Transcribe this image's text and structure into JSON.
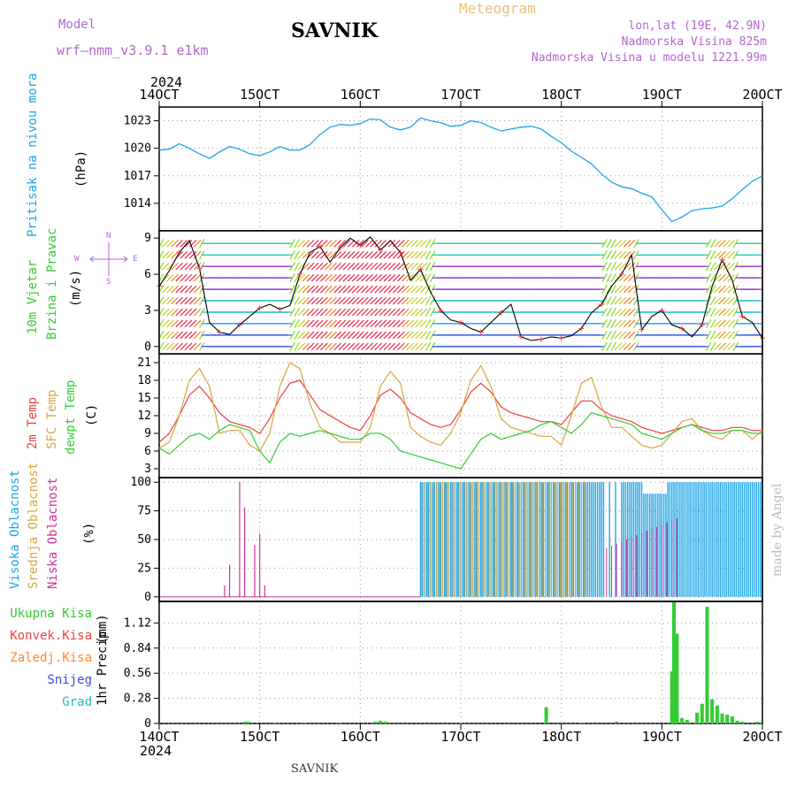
{
  "header": {
    "model_label": "Model",
    "model_name": "wrf–nmm_v3.9.1  e1km",
    "station": "SAVNIK",
    "product": "Meteogram",
    "lonlat": "lon,lat (19E, 42.9N)",
    "elevation": "Nadmorska Visina 825m",
    "model_elevation": "Nadmorska Visina u modelu 1221.99m",
    "year_top": "2024",
    "year_bottom": "2024",
    "footer": "SAVNIK",
    "credit": "made by Angel"
  },
  "colors": {
    "pressure": "#1ea5e8",
    "temp2m": "#ee4040",
    "sfc": "#d9a640",
    "dewpt": "#33cc33",
    "high_cloud": "#1ea5e8",
    "mid_cloud": "#d9a640",
    "low_cloud": "#cc3399",
    "precip": "#33cc33",
    "conv": "#ee4040"
  },
  "labels": {
    "pressure": [
      "Pritisak na nivou mora",
      "(hPa)"
    ],
    "wind": [
      "10m Vjetar",
      "Brzina i Pravac",
      "(m/s)"
    ],
    "temp": [
      "2m Temp",
      "SFC Temp",
      "dewpt Temp",
      "(C)"
    ],
    "cloud": [
      "Visoka Oblacnost",
      "Srednja Oblacnost",
      "Niska Oblacnost",
      "(%)"
    ],
    "precip": [
      "Ukupna Kisa",
      "Konvek.Kisa",
      "Zaledj.Kisa",
      "Snijeg",
      "Grad"
    ],
    "precip_axis": [
      "1hr Precip",
      "(mm)"
    ],
    "compass": {
      "n": "N",
      "s": "S",
      "w": "W",
      "e": "E"
    }
  },
  "chart_data": [
    {
      "type": "line",
      "name": "pressure",
      "x_ticks": [
        "14OCT",
        "15OCT",
        "16OCT",
        "17OCT",
        "18OCT",
        "19OCT",
        "20OCT"
      ],
      "xlim_days": [
        14,
        20
      ],
      "ylim": [
        1011,
        1024.5
      ],
      "y_ticks": [
        1014,
        1017,
        1020,
        1023
      ],
      "x": [
        14.0,
        14.1,
        14.2,
        14.3,
        14.4,
        14.5,
        14.6,
        14.7,
        14.8,
        14.9,
        15.0,
        15.1,
        15.2,
        15.3,
        15.4,
        15.5,
        15.6,
        15.7,
        15.8,
        15.9,
        16.0,
        16.1,
        16.2,
        16.3,
        16.4,
        16.5,
        16.6,
        16.7,
        16.8,
        16.9,
        17.0,
        17.1,
        17.2,
        17.3,
        17.4,
        17.5,
        17.6,
        17.7,
        17.8,
        17.9,
        18.0,
        18.1,
        18.2,
        18.3,
        18.4,
        18.5,
        18.6,
        18.7,
        18.8,
        18.9,
        19.0,
        19.1,
        19.2,
        19.3,
        19.4,
        19.5,
        19.6,
        19.7,
        19.8,
        19.9,
        20.0
      ],
      "values": [
        1019.8,
        1019.9,
        1020.5,
        1020.0,
        1019.4,
        1018.9,
        1019.6,
        1020.2,
        1019.9,
        1019.4,
        1019.2,
        1019.6,
        1020.2,
        1019.8,
        1019.8,
        1020.4,
        1021.5,
        1022.3,
        1022.6,
        1022.5,
        1022.7,
        1023.2,
        1023.1,
        1022.3,
        1022.0,
        1022.3,
        1023.3,
        1023.0,
        1022.8,
        1022.4,
        1022.5,
        1023.0,
        1022.8,
        1022.3,
        1021.9,
        1022.1,
        1022.3,
        1022.4,
        1022.1,
        1021.3,
        1020.6,
        1019.7,
        1019.0,
        1018.3,
        1017.2,
        1016.3,
        1015.8,
        1015.6,
        1015.1,
        1014.7,
        1013.3,
        1012.0,
        1012.5,
        1013.2,
        1013.4,
        1013.5,
        1013.7,
        1014.5,
        1015.5,
        1016.4,
        1017.0
      ]
    },
    {
      "type": "line",
      "name": "wind_speed",
      "ylim": [
        -0.6,
        9.6
      ],
      "y_ticks": [
        0,
        3,
        6,
        9
      ],
      "x": [
        14.0,
        14.1,
        14.2,
        14.3,
        14.4,
        14.5,
        14.6,
        14.7,
        14.8,
        14.9,
        15.0,
        15.1,
        15.2,
        15.3,
        15.4,
        15.5,
        15.6,
        15.7,
        15.8,
        15.9,
        16.0,
        16.1,
        16.2,
        16.3,
        16.4,
        16.5,
        16.6,
        16.7,
        16.8,
        16.9,
        17.0,
        17.1,
        17.2,
        17.3,
        17.4,
        17.5,
        17.6,
        17.7,
        17.8,
        17.9,
        18.0,
        18.1,
        18.2,
        18.3,
        18.4,
        18.5,
        18.6,
        18.7,
        18.8,
        18.9,
        19.0,
        19.1,
        19.2,
        19.3,
        19.4,
        19.5,
        19.6,
        19.7,
        19.8,
        19.9,
        20.0
      ],
      "values": [
        5.0,
        6.3,
        7.8,
        8.8,
        6.5,
        2.0,
        1.2,
        1.0,
        1.8,
        2.5,
        3.2,
        3.5,
        3.1,
        3.4,
        6.0,
        7.8,
        8.3,
        7.0,
        8.2,
        9.0,
        8.4,
        9.1,
        8.0,
        8.8,
        7.8,
        5.5,
        6.4,
        4.5,
        3.0,
        2.2,
        2.0,
        1.5,
        1.2,
        2.0,
        2.8,
        3.5,
        0.8,
        0.5,
        0.6,
        0.8,
        0.7,
        0.9,
        1.5,
        2.8,
        3.5,
        5.0,
        6.0,
        7.6,
        1.4,
        2.5,
        3.0,
        1.8,
        1.5,
        0.8,
        1.8,
        5.0,
        7.2,
        5.5,
        2.5,
        2.0,
        0.7
      ]
    },
    {
      "type": "line",
      "name": "temperature",
      "ylim": [
        1.5,
        22.5
      ],
      "y_ticks": [
        3,
        6,
        9,
        12,
        15,
        18,
        21
      ],
      "x": [
        14.0,
        14.1,
        14.2,
        14.3,
        14.4,
        14.5,
        14.6,
        14.7,
        14.8,
        14.9,
        15.0,
        15.1,
        15.2,
        15.3,
        15.4,
        15.5,
        15.6,
        15.7,
        15.8,
        15.9,
        16.0,
        16.1,
        16.2,
        16.3,
        16.4,
        16.5,
        16.6,
        16.7,
        16.8,
        16.9,
        17.0,
        17.1,
        17.2,
        17.3,
        17.4,
        17.5,
        17.6,
        17.7,
        17.8,
        17.9,
        18.0,
        18.1,
        18.2,
        18.3,
        18.4,
        18.5,
        18.6,
        18.7,
        18.8,
        18.9,
        19.0,
        19.1,
        19.2,
        19.3,
        19.4,
        19.5,
        19.6,
        19.7,
        19.8,
        19.9,
        20.0
      ],
      "series": [
        {
          "name": "2m Temp",
          "values": [
            7.5,
            9.0,
            12.0,
            15.5,
            17.0,
            15.0,
            12.5,
            11.0,
            10.5,
            10.0,
            9.0,
            11.5,
            15.0,
            17.5,
            18.0,
            15.5,
            13.0,
            12.0,
            11.0,
            10.0,
            9.5,
            12.0,
            15.5,
            16.5,
            15.0,
            12.5,
            11.5,
            10.5,
            10.0,
            10.5,
            13.0,
            16.0,
            17.5,
            16.0,
            13.5,
            12.5,
            12.0,
            11.5,
            11.0,
            11.0,
            10.5,
            12.5,
            14.5,
            14.5,
            13.0,
            12.0,
            11.5,
            11.0,
            10.0,
            9.5,
            9.0,
            9.5,
            10.0,
            10.5,
            10.0,
            9.5,
            9.5,
            10.0,
            10.0,
            9.5,
            9.5
          ]
        },
        {
          "name": "SFC Temp",
          "values": [
            6.5,
            7.5,
            12.0,
            18.0,
            20.0,
            17.0,
            9.0,
            9.5,
            9.5,
            7.0,
            6.0,
            9.0,
            17.0,
            21.0,
            20.0,
            14.0,
            10.0,
            9.0,
            7.5,
            7.5,
            7.5,
            10.0,
            17.0,
            19.5,
            17.5,
            10.0,
            8.5,
            7.5,
            7.0,
            9.0,
            12.5,
            18.0,
            20.5,
            17.0,
            11.5,
            10.0,
            9.5,
            9.0,
            8.5,
            8.5,
            7.0,
            12.0,
            17.5,
            18.5,
            13.5,
            10.0,
            10.0,
            8.5,
            7.0,
            6.5,
            7.0,
            9.0,
            11.0,
            11.5,
            9.5,
            8.5,
            8.0,
            9.5,
            9.5,
            8.0,
            9.5
          ]
        },
        {
          "name": "dewpt Temp",
          "values": [
            6.5,
            5.5,
            7.0,
            8.5,
            9.0,
            8.0,
            9.5,
            10.5,
            10.0,
            9.5,
            6.0,
            4.0,
            7.5,
            9.0,
            8.5,
            9.0,
            9.5,
            9.0,
            8.5,
            8.0,
            8.0,
            9.0,
            9.0,
            8.0,
            6.0,
            5.5,
            5.0,
            4.5,
            4.0,
            3.5,
            3.0,
            5.5,
            8.0,
            9.0,
            8.0,
            8.5,
            9.0,
            9.5,
            10.5,
            11.0,
            10.0,
            9.0,
            10.5,
            12.5,
            12.0,
            11.5,
            11.0,
            10.5,
            9.0,
            8.5,
            8.0,
            9.0,
            10.0,
            10.5,
            9.5,
            9.0,
            9.0,
            9.5,
            9.5,
            9.0,
            9.0
          ]
        }
      ]
    },
    {
      "type": "bar",
      "name": "cloudiness",
      "ylim": [
        -4,
        104
      ],
      "y_ticks": [
        0,
        25,
        50,
        75,
        100
      ],
      "series": [
        {
          "name": "Niska Oblacnost",
          "x": [
            14.65,
            14.7,
            14.8,
            14.85,
            14.95,
            15.0,
            15.05
          ],
          "values": [
            10,
            28,
            100,
            78,
            45,
            55,
            10
          ]
        },
        {
          "name": "Visoka Oblacnost",
          "x_start": 16.6,
          "x_end": 20.0,
          "gap": [
            18.4,
            18.6
          ],
          "value": 100
        },
        {
          "name": "Srednja Oblacnost",
          "x_start": 16.6,
          "x_end": 18.25,
          "value": 100
        }
      ]
    },
    {
      "type": "bar",
      "name": "precip_1hr",
      "ylim": [
        0,
        1.36
      ],
      "y_ticks": [
        0,
        0.28,
        0.56,
        0.84,
        1.12
      ],
      "x_bottom": [
        "14OCT",
        "15OCT",
        "16OCT",
        "17OCT",
        "18OCT",
        "19OCT",
        "20OCT"
      ],
      "series": [
        {
          "name": "Ukupna Kisa",
          "x": [
            14.85,
            14.88,
            15.15,
            15.45,
            15.8,
            16.15,
            16.2,
            16.25,
            17.0,
            17.85,
            18.2,
            18.55,
            19.1,
            19.12,
            19.15,
            19.2,
            19.25,
            19.35,
            19.4,
            19.45,
            19.5,
            19.55,
            19.6,
            19.65,
            19.7,
            19.75,
            19.8,
            19.95
          ],
          "values": [
            0.02,
            0.02,
            0.01,
            0.01,
            0.01,
            0.02,
            0.03,
            0.02,
            0.01,
            0.18,
            0.01,
            0.02,
            0.58,
            1.35,
            1.0,
            0.06,
            0.04,
            0.12,
            0.22,
            1.3,
            0.27,
            0.2,
            0.11,
            0.1,
            0.08,
            0.03,
            0.02,
            0.02
          ]
        },
        {
          "name": "Konvek.Kisa",
          "x": [
            18.55
          ],
          "values": [
            0.02
          ]
        }
      ]
    }
  ]
}
